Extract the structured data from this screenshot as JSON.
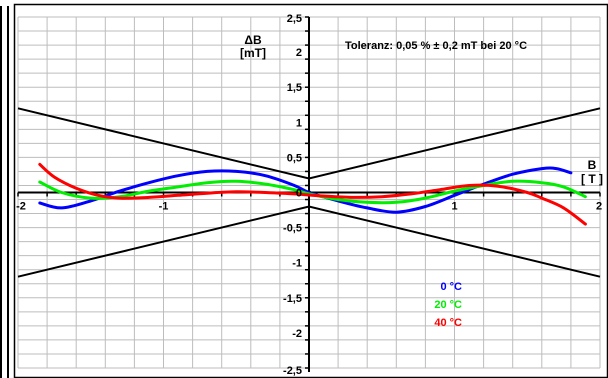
{
  "chart_data": {
    "type": "line",
    "title": "",
    "annotation": "Toleranz: 0,05 % ± 0,2 mT bei 20 °C",
    "ylabel_line1": "ΔB",
    "ylabel_line2": "[mT]",
    "xlabel_line1": "B",
    "xlabel_line2": "[ T ]",
    "xlim": [
      -2,
      2
    ],
    "ylim": [
      -2.5,
      2.5
    ],
    "grid": true,
    "legend_position": "bottom-right",
    "x_ticks": [
      {
        "value": -2,
        "label": "-2"
      },
      {
        "value": -1,
        "label": "-1"
      },
      {
        "value": 0,
        "label": "0"
      },
      {
        "value": 1,
        "label": "1"
      },
      {
        "value": 2,
        "label": "2"
      }
    ],
    "y_ticks": [
      {
        "value": 2.5,
        "label": "2,5"
      },
      {
        "value": 2,
        "label": "2"
      },
      {
        "value": 1.5,
        "label": "1,5"
      },
      {
        "value": 1,
        "label": "1"
      },
      {
        "value": 0.5,
        "label": "0,5"
      },
      {
        "value": 0,
        "label": "0"
      },
      {
        "value": -0.5,
        "label": "-0,5"
      },
      {
        "value": -1,
        "label": "-1"
      },
      {
        "value": -1.5,
        "label": "-1,5"
      },
      {
        "value": -2,
        "label": "-2"
      },
      {
        "value": -2.5,
        "label": "-2,5"
      }
    ],
    "tolerance_band": {
      "color": "#000000",
      "upper": [
        [
          -2,
          1.2
        ],
        [
          0,
          0.2
        ],
        [
          2,
          1.2
        ]
      ],
      "lower": [
        [
          -2,
          -1.2
        ],
        [
          0,
          -0.2
        ],
        [
          2,
          -1.2
        ]
      ]
    },
    "series": [
      {
        "name": "0 °C",
        "color": "#0000ff",
        "points": [
          [
            -1.85,
            -0.15
          ],
          [
            -1.7,
            -0.22
          ],
          [
            -1.5,
            -0.12
          ],
          [
            -1.3,
            0.02
          ],
          [
            -1.1,
            0.14
          ],
          [
            -0.9,
            0.24
          ],
          [
            -0.7,
            0.3
          ],
          [
            -0.5,
            0.3
          ],
          [
            -0.3,
            0.24
          ],
          [
            -0.1,
            0.1
          ],
          [
            0,
            0.0
          ],
          [
            0.2,
            -0.12
          ],
          [
            0.4,
            -0.22
          ],
          [
            0.6,
            -0.28
          ],
          [
            0.8,
            -0.2
          ],
          [
            1.0,
            -0.04
          ],
          [
            1.2,
            0.12
          ],
          [
            1.4,
            0.26
          ],
          [
            1.6,
            0.34
          ],
          [
            1.7,
            0.34
          ],
          [
            1.8,
            0.28
          ]
        ]
      },
      {
        "name": "20 °C",
        "color": "#00ee00",
        "points": [
          [
            -1.85,
            0.15
          ],
          [
            -1.7,
            0.0
          ],
          [
            -1.5,
            -0.08
          ],
          [
            -1.3,
            -0.06
          ],
          [
            -1.1,
            0.02
          ],
          [
            -0.9,
            0.08
          ],
          [
            -0.7,
            0.14
          ],
          [
            -0.5,
            0.16
          ],
          [
            -0.3,
            0.12
          ],
          [
            -0.1,
            0.04
          ],
          [
            0,
            -0.02
          ],
          [
            0.2,
            -0.1
          ],
          [
            0.4,
            -0.14
          ],
          [
            0.6,
            -0.14
          ],
          [
            0.8,
            -0.08
          ],
          [
            1.0,
            0.02
          ],
          [
            1.2,
            0.1
          ],
          [
            1.4,
            0.16
          ],
          [
            1.6,
            0.14
          ],
          [
            1.75,
            0.08
          ],
          [
            1.9,
            -0.06
          ]
        ]
      },
      {
        "name": "40 °C",
        "color": "#ff0000",
        "points": [
          [
            -1.85,
            0.4
          ],
          [
            -1.75,
            0.22
          ],
          [
            -1.6,
            0.06
          ],
          [
            -1.45,
            -0.04
          ],
          [
            -1.3,
            -0.08
          ],
          [
            -1.1,
            -0.07
          ],
          [
            -0.9,
            -0.04
          ],
          [
            -0.7,
            -0.01
          ],
          [
            -0.5,
            0.01
          ],
          [
            -0.3,
            0.0
          ],
          [
            -0.1,
            -0.02
          ],
          [
            0.1,
            -0.05
          ],
          [
            0.3,
            -0.07
          ],
          [
            0.5,
            -0.06
          ],
          [
            0.7,
            -0.02
          ],
          [
            0.9,
            0.04
          ],
          [
            1.1,
            0.1
          ],
          [
            1.3,
            0.09
          ],
          [
            1.5,
            0.0
          ],
          [
            1.6,
            -0.08
          ],
          [
            1.75,
            -0.22
          ],
          [
            1.9,
            -0.45
          ]
        ]
      }
    ]
  }
}
